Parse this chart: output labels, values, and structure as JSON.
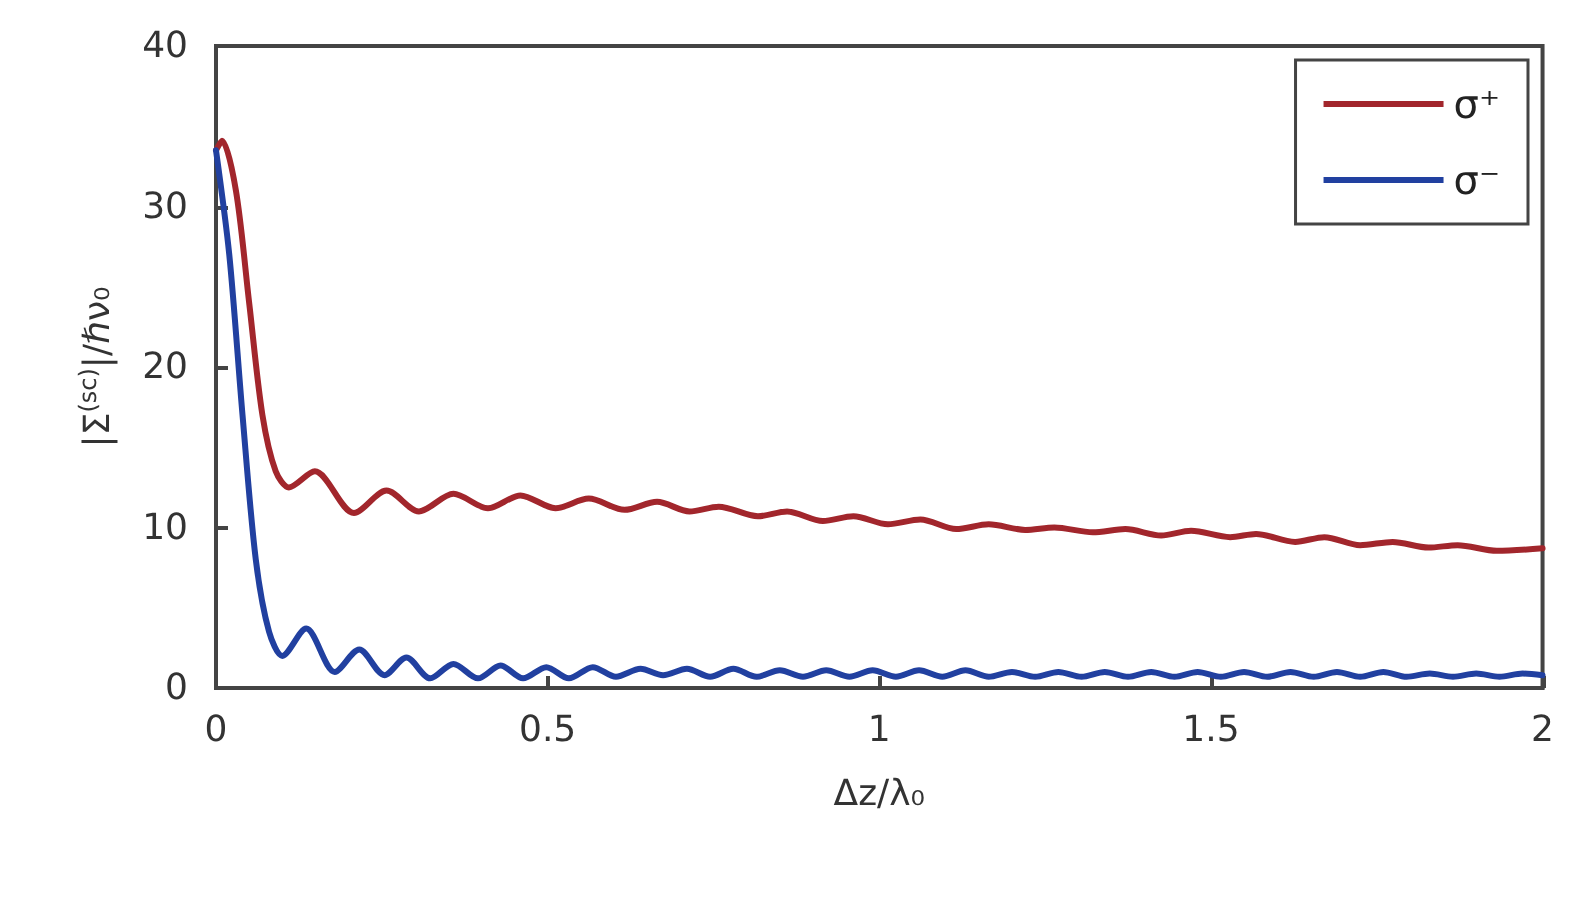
{
  "chart_data": {
    "type": "line",
    "xlabel": "Δz/λ₀",
    "ylabel": "|Σ$^{(sc)}$|/ℏν₀",
    "xlim": [
      0,
      2
    ],
    "ylim": [
      0,
      40
    ],
    "xticks": [
      0,
      0.5,
      1,
      1.5,
      2
    ],
    "yticks": [
      0,
      10,
      20,
      30,
      40
    ],
    "grid": false,
    "legend": "top right",
    "marker": "none",
    "line_style": "solid",
    "series": [
      {
        "name": "σ⁺",
        "color": "#a2262c",
        "x": [
          0,
          0.009,
          0.03,
          0.05,
          0.07,
          0.09,
          0.11,
          0.149,
          0.208,
          0.257,
          0.306,
          0.358,
          0.41,
          0.459,
          0.512,
          0.562,
          0.616,
          0.665,
          0.714,
          0.758,
          0.817,
          0.861,
          0.915,
          0.961,
          1.013,
          1.062,
          1.116,
          1.165,
          1.22,
          1.264,
          1.322,
          1.371,
          1.425,
          1.47,
          1.529,
          1.568,
          1.627,
          1.671,
          1.725,
          1.774,
          1.828,
          1.872,
          1.931,
          2
        ],
        "values": [
          33.5,
          34.1,
          31,
          24,
          17,
          13.5,
          12.5,
          13.5,
          10.9,
          12.3,
          11,
          12.1,
          11.2,
          12,
          11.2,
          11.8,
          11.1,
          11.6,
          11,
          11.3,
          10.7,
          11,
          10.4,
          10.7,
          10.2,
          10.5,
          9.9,
          10.2,
          9.85,
          10,
          9.7,
          9.9,
          9.5,
          9.8,
          9.4,
          9.6,
          9.1,
          9.4,
          8.9,
          9.1,
          8.75,
          8.9,
          8.55,
          8.7
        ]
      },
      {
        "name": "σ⁻",
        "color": "#2140a0",
        "x": [
          0,
          0.02,
          0.04,
          0.06,
          0.08,
          0.1,
          0.136,
          0.179,
          0.216,
          0.254,
          0.287,
          0.323,
          0.358,
          0.395,
          0.429,
          0.463,
          0.498,
          0.532,
          0.568,
          0.603,
          0.64,
          0.674,
          0.71,
          0.745,
          0.78,
          0.815,
          0.85,
          0.885,
          0.92,
          0.955,
          0.99,
          1.025,
          1.06,
          1.095,
          1.13,
          1.165,
          1.2,
          1.235,
          1.27,
          1.305,
          1.34,
          1.375,
          1.41,
          1.445,
          1.48,
          1.515,
          1.55,
          1.585,
          1.62,
          1.655,
          1.69,
          1.725,
          1.76,
          1.795,
          1.83,
          1.865,
          1.9,
          1.935,
          1.97,
          2
        ],
        "values": [
          33.5,
          27,
          17,
          8,
          3.5,
          2,
          3.7,
          1,
          2.4,
          0.8,
          1.9,
          0.6,
          1.5,
          0.6,
          1.4,
          0.6,
          1.3,
          0.6,
          1.3,
          0.7,
          1.2,
          0.8,
          1.2,
          0.7,
          1.2,
          0.7,
          1.1,
          0.7,
          1.1,
          0.7,
          1.1,
          0.7,
          1.1,
          0.7,
          1.1,
          0.7,
          1,
          0.7,
          1,
          0.7,
          1,
          0.7,
          1,
          0.7,
          1,
          0.7,
          1,
          0.7,
          1,
          0.7,
          1,
          0.7,
          1,
          0.7,
          0.9,
          0.7,
          0.9,
          0.7,
          0.9,
          0.8
        ]
      }
    ]
  }
}
